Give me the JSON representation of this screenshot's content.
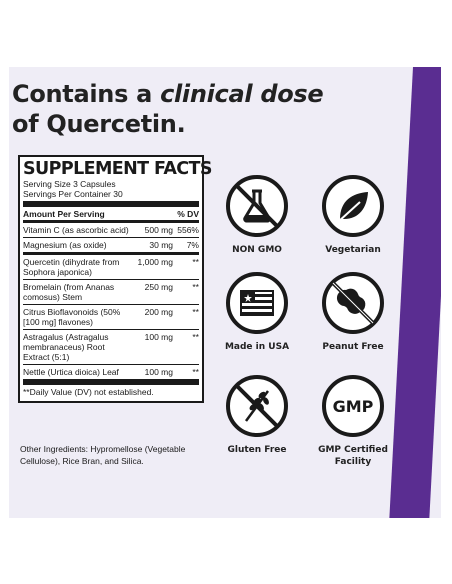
{
  "headline": {
    "line1_prefix": "Contains a ",
    "line1_emphasis": "clinical dose",
    "line2": "of Quercetin."
  },
  "supplement_facts": {
    "title": "SUPPLEMENT FACTS",
    "serving_size": "Serving Size 3 Capsules",
    "servings_per_container": "Servings Per Container 30",
    "header_amount": "Amount Per Serving",
    "header_dv": "% DV",
    "vitamins": [
      {
        "name": "Vitamin C (as ascorbic acid)",
        "amount": "500 mg",
        "dv": "556%"
      },
      {
        "name": "Magnesium (as oxide)",
        "amount": "30 mg",
        "dv": "7%"
      }
    ],
    "ingredients": [
      {
        "name": "Quercetin (dihydrate from Sophora japonica)",
        "amount": "1,000 mg",
        "dv": "**"
      },
      {
        "name": "Bromelain (from Ananas comosus) Stem",
        "amount": "250 mg",
        "dv": "**"
      },
      {
        "name": "Citrus Bioflavonoids (50% [100 mg] flavones)",
        "amount": "200 mg",
        "dv": "**"
      },
      {
        "name": "Astragalus (Astragalus membranaceus) Root Extract (5:1)",
        "amount": "100 mg",
        "dv": "**"
      },
      {
        "name": "Nettle (Urtica dioica) Leaf",
        "amount": "100 mg",
        "dv": "**"
      }
    ],
    "footnote": "**Daily Value (DV) not established."
  },
  "other_ingredients": "Other Ingredients: Hypromellose (Vegetable Cellulose), Rice Bran, and Silica.",
  "badges": [
    {
      "icon": "flask-crossed-icon",
      "label": "NON GMO"
    },
    {
      "icon": "leaf-icon",
      "label": "Vegetarian"
    },
    {
      "icon": "us-flag-icon",
      "label": "Made in USA"
    },
    {
      "icon": "peanut-crossed-icon",
      "label": "Peanut Free"
    },
    {
      "icon": "wheat-crossed-icon",
      "label": "Gluten Free"
    },
    {
      "icon": "gmp-icon",
      "label": "GMP Certified Facility",
      "icon_text": "GMP"
    }
  ],
  "colors": {
    "panel": "#efedf6",
    "stripe": "#5a2d91",
    "ink": "#1a1a1a"
  }
}
